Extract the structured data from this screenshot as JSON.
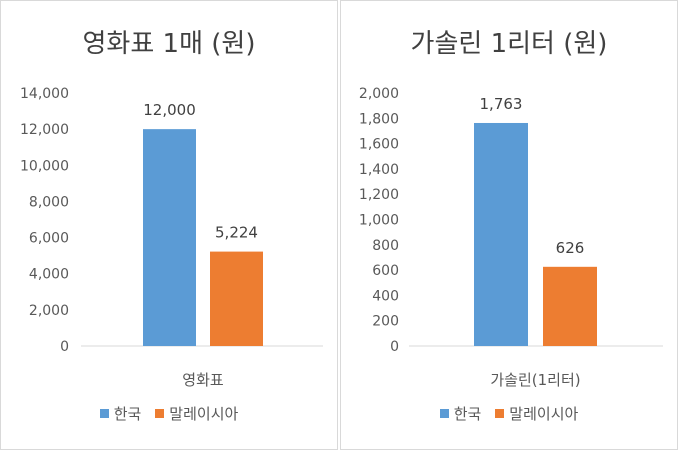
{
  "chart_data": [
    {
      "type": "bar",
      "title": "영화표 1매 (원)",
      "categories": [
        "영화표"
      ],
      "series": [
        {
          "name": "한국",
          "values": [
            12000
          ],
          "color": "#5b9bd5"
        },
        {
          "name": "말레이시아",
          "values": [
            5224
          ],
          "color": "#ed7d31"
        }
      ],
      "data_labels": [
        "12,000",
        "5,224"
      ],
      "ylim": [
        0,
        14000
      ],
      "yticks": [
        0,
        2000,
        4000,
        6000,
        8000,
        10000,
        12000,
        14000
      ],
      "ytick_labels": [
        "0",
        "2,000",
        "4,000",
        "6,000",
        "8,000",
        "10,000",
        "12,000",
        "14,000"
      ],
      "xlabel": "",
      "ylabel": "",
      "legend": "bottom",
      "grid": false
    },
    {
      "type": "bar",
      "title": "가솔린 1리터 (원)",
      "categories": [
        "가솔린(1리터)"
      ],
      "series": [
        {
          "name": "한국",
          "values": [
            1763
          ],
          "color": "#5b9bd5"
        },
        {
          "name": "말레이시아",
          "values": [
            626
          ],
          "color": "#ed7d31"
        }
      ],
      "data_labels": [
        "1,763",
        "626"
      ],
      "ylim": [
        0,
        2000
      ],
      "yticks": [
        0,
        200,
        400,
        600,
        800,
        1000,
        1200,
        1400,
        1600,
        1800,
        2000
      ],
      "ytick_labels": [
        "0",
        "200",
        "400",
        "600",
        "800",
        "1,000",
        "1,200",
        "1,400",
        "1,600",
        "1,800",
        "2,000"
      ],
      "xlabel": "",
      "ylabel": "",
      "legend": "bottom",
      "grid": false
    }
  ]
}
